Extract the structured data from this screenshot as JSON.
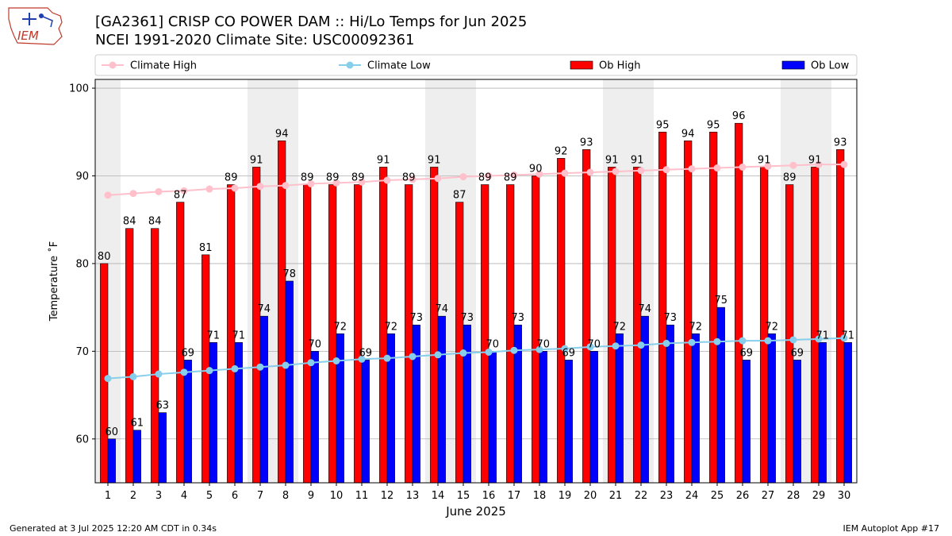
{
  "header": {
    "logo_text": "IEM",
    "title_line1": "[GA2361] CRISP CO POWER DAM :: Hi/Lo Temps for Jun 2025",
    "title_line2": "NCEI 1991-2020 Climate Site: USC00092361"
  },
  "footer": {
    "generated": "Generated at 3 Jul 2025 12:20 AM CDT in 0.34s",
    "app": "IEM Autoplot App #17"
  },
  "colors": {
    "ob_high": "#ff0000",
    "ob_low": "#0000ff",
    "climate_high": "#ffc0cb",
    "climate_low": "#87ceeb",
    "weekend_shade": "#eeeeee",
    "grid": "#b0b0b0"
  },
  "chart_data": {
    "type": "bar",
    "xlabel": "June 2025",
    "ylabel": "Temperature ˚F",
    "ylim": [
      55,
      101
    ],
    "yticks": [
      60,
      70,
      80,
      90,
      100
    ],
    "grid": "horizontal",
    "legend_position": "top",
    "categories": [
      "1",
      "2",
      "3",
      "4",
      "5",
      "6",
      "7",
      "8",
      "9",
      "10",
      "11",
      "12",
      "13",
      "14",
      "15",
      "16",
      "17",
      "18",
      "19",
      "20",
      "21",
      "22",
      "23",
      "24",
      "25",
      "26",
      "27",
      "28",
      "29",
      "30"
    ],
    "shaded_days": [
      1,
      7,
      8,
      14,
      15,
      21,
      22,
      28,
      29
    ],
    "series": [
      {
        "name": "Ob High",
        "kind": "bar",
        "color": "#ff0000",
        "values": [
          80,
          84,
          84,
          87,
          81,
          89,
          91,
          94,
          89,
          89,
          89,
          91,
          89,
          91,
          87,
          89,
          89,
          90,
          92,
          93,
          91,
          91,
          95,
          94,
          95,
          96,
          91,
          89,
          91,
          93
        ]
      },
      {
        "name": "Ob Low",
        "kind": "bar",
        "color": "#0000ff",
        "values": [
          60,
          61,
          63,
          69,
          71,
          71,
          74,
          78,
          70,
          72,
          69,
          72,
          73,
          74,
          73,
          70,
          73,
          70,
          69,
          70,
          72,
          74,
          73,
          72,
          75,
          69,
          72,
          69,
          71,
          71
        ]
      },
      {
        "name": "Climate High",
        "kind": "line",
        "color": "#ffc0cb",
        "values": [
          87.8,
          88.0,
          88.2,
          88.3,
          88.5,
          88.6,
          88.8,
          88.9,
          89.1,
          89.2,
          89.3,
          89.5,
          89.6,
          89.7,
          89.9,
          90.0,
          90.1,
          90.2,
          90.3,
          90.4,
          90.5,
          90.6,
          90.7,
          90.8,
          90.9,
          91.0,
          91.1,
          91.2,
          91.3,
          91.3
        ]
      },
      {
        "name": "Climate Low",
        "kind": "line",
        "color": "#87ceeb",
        "values": [
          66.9,
          67.1,
          67.4,
          67.6,
          67.8,
          68.0,
          68.2,
          68.4,
          68.7,
          68.9,
          69.1,
          69.2,
          69.4,
          69.6,
          69.8,
          69.9,
          70.1,
          70.2,
          70.3,
          70.5,
          70.6,
          70.7,
          70.9,
          71.0,
          71.1,
          71.2,
          71.2,
          71.3,
          71.4,
          71.5
        ]
      }
    ]
  }
}
